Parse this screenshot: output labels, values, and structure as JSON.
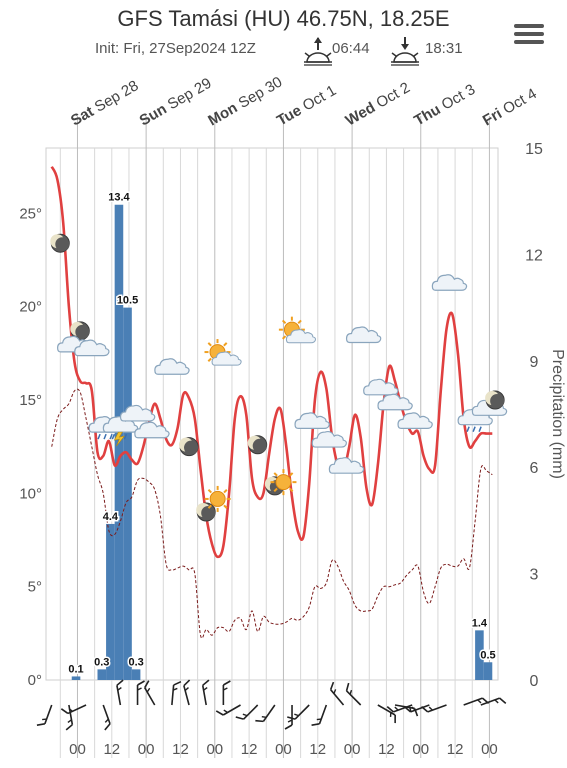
{
  "header": {
    "title": "GFS Tamási (HU) 46.75N, 18.25E",
    "init": "Init: Fri, 27Sep2024 12Z",
    "sunrise": "06:44",
    "sunset": "18:31"
  },
  "colors": {
    "temperature": "#e04040",
    "dewpoint": "#7a1a1a",
    "precipitation": "#4a7fb5",
    "grid": "#d8d8d8"
  },
  "chart_data": {
    "type": "line",
    "x_unit": "hours since Fri 27 Sep 2024 12Z",
    "days": [
      {
        "day": "Sat",
        "date": "Sep 28",
        "h": 12
      },
      {
        "day": "Sun",
        "date": "Sep 29",
        "h": 36
      },
      {
        "day": "Mon",
        "date": "Sep 30",
        "h": 60
      },
      {
        "day": "Tue",
        "date": "Oct 1",
        "h": 84
      },
      {
        "day": "Wed",
        "date": "Oct 2",
        "h": 108
      },
      {
        "day": "Thu",
        "date": "Oct 3",
        "h": 132
      },
      {
        "day": "Fri",
        "date": "Oct 4",
        "h": 156
      }
    ],
    "xlim": [
      1,
      159
    ],
    "x_ticks": [
      {
        "h": 12,
        "label": "00"
      },
      {
        "h": 24,
        "label": "12"
      },
      {
        "h": 36,
        "label": "00"
      },
      {
        "h": 48,
        "label": "12"
      },
      {
        "h": 60,
        "label": "00"
      },
      {
        "h": 72,
        "label": "12"
      },
      {
        "h": 84,
        "label": "00"
      },
      {
        "h": 96,
        "label": "12"
      },
      {
        "h": 108,
        "label": "00"
      },
      {
        "h": 120,
        "label": "12"
      },
      {
        "h": 132,
        "label": "00"
      },
      {
        "h": 144,
        "label": "12"
      },
      {
        "h": 156,
        "label": "00"
      }
    ],
    "y_left": {
      "ylim": [
        0,
        28.5
      ],
      "ticks": [
        0,
        5,
        10,
        15,
        20,
        25
      ],
      "labels": [
        "0°",
        "5°",
        "10°",
        "15°",
        "20°",
        "25°"
      ]
    },
    "y_right": {
      "label": "Precipitation (mm)",
      "ylim": [
        0,
        15
      ],
      "ticks": [
        0,
        3,
        6,
        9,
        12,
        15
      ]
    },
    "temperature": {
      "x": [
        3,
        5,
        7,
        9,
        11,
        13,
        15,
        17,
        19,
        21,
        23,
        25,
        27,
        29,
        31,
        33,
        35,
        37,
        39,
        41,
        43,
        45,
        47,
        49,
        51,
        53,
        55,
        57,
        59,
        61,
        63,
        65,
        67,
        69,
        71,
        73,
        75,
        77,
        79,
        81,
        83,
        85,
        87,
        89,
        91,
        93,
        95,
        97,
        99,
        101,
        103,
        105,
        107,
        109,
        111,
        113,
        115,
        117,
        119,
        121,
        123,
        125,
        127,
        129,
        131,
        133,
        135,
        137,
        139,
        141,
        143,
        145,
        147,
        149,
        151,
        153,
        155,
        157
      ],
      "values": [
        27.5,
        26.8,
        24.5,
        20.0,
        17.0,
        16.0,
        15.9,
        15.5,
        12.2,
        12.0,
        12.8,
        11.5,
        12.0,
        12.2,
        11.8,
        11.6,
        12.5,
        13.8,
        14.8,
        14.0,
        12.9,
        12.6,
        13.5,
        15.3,
        15.1,
        14.0,
        11.3,
        8.8,
        7.3,
        6.6,
        7.2,
        10.0,
        14.0,
        15.2,
        14.2,
        10.8,
        9.8,
        10.0,
        12.1,
        14.0,
        14.5,
        12.5,
        9.8,
        8.0,
        7.7,
        10.5,
        15.0,
        16.5,
        15.6,
        13.0,
        11.5,
        11.2,
        12.5,
        14.2,
        13.0,
        10.3,
        9.4,
        11.5,
        14.8,
        16.8,
        16.0,
        14.8,
        13.8,
        13.2,
        13.3,
        12.0,
        11.3,
        11.5,
        15.5,
        18.8,
        19.6,
        17.5,
        14.0,
        12.5,
        12.8,
        13.2,
        13.2,
        13.2
      ]
    },
    "dewpoint": {
      "x": [
        3,
        5,
        7,
        9,
        11,
        13,
        15,
        17,
        19,
        21,
        23,
        25,
        27,
        29,
        31,
        33,
        35,
        37,
        39,
        41,
        43,
        45,
        47,
        49,
        51,
        53,
        55,
        57,
        59,
        61,
        63,
        65,
        67,
        69,
        71,
        73,
        75,
        77,
        79,
        81,
        83,
        85,
        87,
        89,
        91,
        93,
        95,
        97,
        99,
        101,
        103,
        105,
        107,
        109,
        111,
        113,
        115,
        117,
        119,
        121,
        123,
        125,
        127,
        129,
        131,
        133,
        135,
        137,
        139,
        141,
        143,
        145,
        147,
        149,
        151,
        153,
        155,
        157
      ],
      "values": [
        12.5,
        14.0,
        14.5,
        14.8,
        15.5,
        15.4,
        14.0,
        12.5,
        11.0,
        10.0,
        8.0,
        7.8,
        8.5,
        9.5,
        9.8,
        10.7,
        10.8,
        10.6,
        10.2,
        8.8,
        6.2,
        5.9,
        6.0,
        6.1,
        5.9,
        5.7,
        2.4,
        2.7,
        2.4,
        2.8,
        2.8,
        2.6,
        3.2,
        3.3,
        2.7,
        3.7,
        2.6,
        3.4,
        3.1,
        3.0,
        3.0,
        3.1,
        3.3,
        3.2,
        3.4,
        3.9,
        5.0,
        4.9,
        5.2,
        6.4,
        6.1,
        5.3,
        4.8,
        4.0,
        3.7,
        3.7,
        3.8,
        4.5,
        5.0,
        5.0,
        5.1,
        5.2,
        5.6,
        5.9,
        6.1,
        4.7,
        4.1,
        5.0,
        6.0,
        6.2,
        6.1,
        6.1,
        6.5,
        6.0,
        8.5,
        11.3,
        11.2,
        11.0
      ]
    },
    "precipitation": [
      {
        "h": 11.5,
        "value": 0.1,
        "label": "0.1"
      },
      {
        "h": 20.5,
        "value": 0.3,
        "label": "0.3"
      },
      {
        "h": 23.5,
        "value": 4.4,
        "label": "4.4"
      },
      {
        "h": 26.5,
        "value": 13.4,
        "label": "13.4"
      },
      {
        "h": 29.5,
        "value": 10.5,
        "label": "10.5"
      },
      {
        "h": 32.5,
        "value": 0.3,
        "label": "0.3"
      },
      {
        "h": 152.5,
        "value": 1.4,
        "label": "1.4"
      },
      {
        "h": 155.5,
        "value": 0.5,
        "label": "0.5"
      }
    ],
    "weather_icons": [
      {
        "h": 6,
        "t": 23.4,
        "icon": "moon-icon"
      },
      {
        "h": 13,
        "t": 18.7,
        "icon": "moon-icon"
      },
      {
        "h": 11,
        "t": 17.9,
        "icon": "cloud-icon"
      },
      {
        "h": 17,
        "t": 17.7,
        "icon": "cloud-icon"
      },
      {
        "h": 22,
        "t": 13.6,
        "icon": "rain-cloud-icon"
      },
      {
        "h": 27,
        "t": 13.6,
        "icon": "thunder-cloud-icon"
      },
      {
        "h": 33,
        "t": 14.2,
        "icon": "cloud-icon"
      },
      {
        "h": 38,
        "t": 13.3,
        "icon": "cloud-icon"
      },
      {
        "h": 45,
        "t": 16.7,
        "icon": "cloud-icon"
      },
      {
        "h": 51,
        "t": 12.5,
        "icon": "moon-icon"
      },
      {
        "h": 57,
        "t": 9.0,
        "icon": "moon-icon"
      },
      {
        "h": 61,
        "t": 9.7,
        "icon": "sun-icon"
      },
      {
        "h": 62,
        "t": 17.3,
        "icon": "sun-cloud-icon"
      },
      {
        "h": 75,
        "t": 12.6,
        "icon": "moon-icon"
      },
      {
        "h": 81,
        "t": 10.4,
        "icon": "moon-icon"
      },
      {
        "h": 84,
        "t": 10.6,
        "icon": "sun-icon"
      },
      {
        "h": 88,
        "t": 18.5,
        "icon": "sun-cloud-icon"
      },
      {
        "h": 94,
        "t": 13.8,
        "icon": "cloud-icon"
      },
      {
        "h": 100,
        "t": 12.8,
        "icon": "cloud-icon"
      },
      {
        "h": 106,
        "t": 11.4,
        "icon": "cloud-icon"
      },
      {
        "h": 112,
        "t": 18.4,
        "icon": "cloud-icon"
      },
      {
        "h": 118,
        "t": 15.6,
        "icon": "cloud-icon"
      },
      {
        "h": 123,
        "t": 14.8,
        "icon": "cloud-icon"
      },
      {
        "h": 130,
        "t": 13.8,
        "icon": "cloud-icon"
      },
      {
        "h": 142,
        "t": 21.2,
        "icon": "cloud-icon"
      },
      {
        "h": 151,
        "t": 14.0,
        "icon": "rain-cloud-icon"
      },
      {
        "h": 156,
        "t": 14.5,
        "icon": "cloud-icon"
      },
      {
        "h": 158,
        "t": 15.0,
        "icon": "moon-icon"
      }
    ],
    "wind": [
      {
        "h": 3,
        "dir": 200
      },
      {
        "h": 9,
        "dir": 170
      },
      {
        "h": 15,
        "dir": 245
      },
      {
        "h": 21,
        "dir": 160
      },
      {
        "h": 27,
        "dir": 350
      },
      {
        "h": 33,
        "dir": 0
      },
      {
        "h": 39,
        "dir": 330
      },
      {
        "h": 45,
        "dir": 5
      },
      {
        "h": 51,
        "dir": 345
      },
      {
        "h": 57,
        "dir": 350
      },
      {
        "h": 63,
        "dir": 0
      },
      {
        "h": 69,
        "dir": 240
      },
      {
        "h": 75,
        "dir": 225
      },
      {
        "h": 81,
        "dir": 215
      },
      {
        "h": 87,
        "dir": 180
      },
      {
        "h": 93,
        "dir": 225
      },
      {
        "h": 99,
        "dir": 200
      },
      {
        "h": 105,
        "dir": 320
      },
      {
        "h": 111,
        "dir": 315
      },
      {
        "h": 117,
        "dir": 120
      },
      {
        "h": 123,
        "dir": 100
      },
      {
        "h": 129,
        "dir": 250
      },
      {
        "h": 135,
        "dir": 250
      },
      {
        "h": 141,
        "dir": 250
      },
      {
        "h": 147,
        "dir": 70
      },
      {
        "h": 153,
        "dir": 70
      }
    ]
  }
}
